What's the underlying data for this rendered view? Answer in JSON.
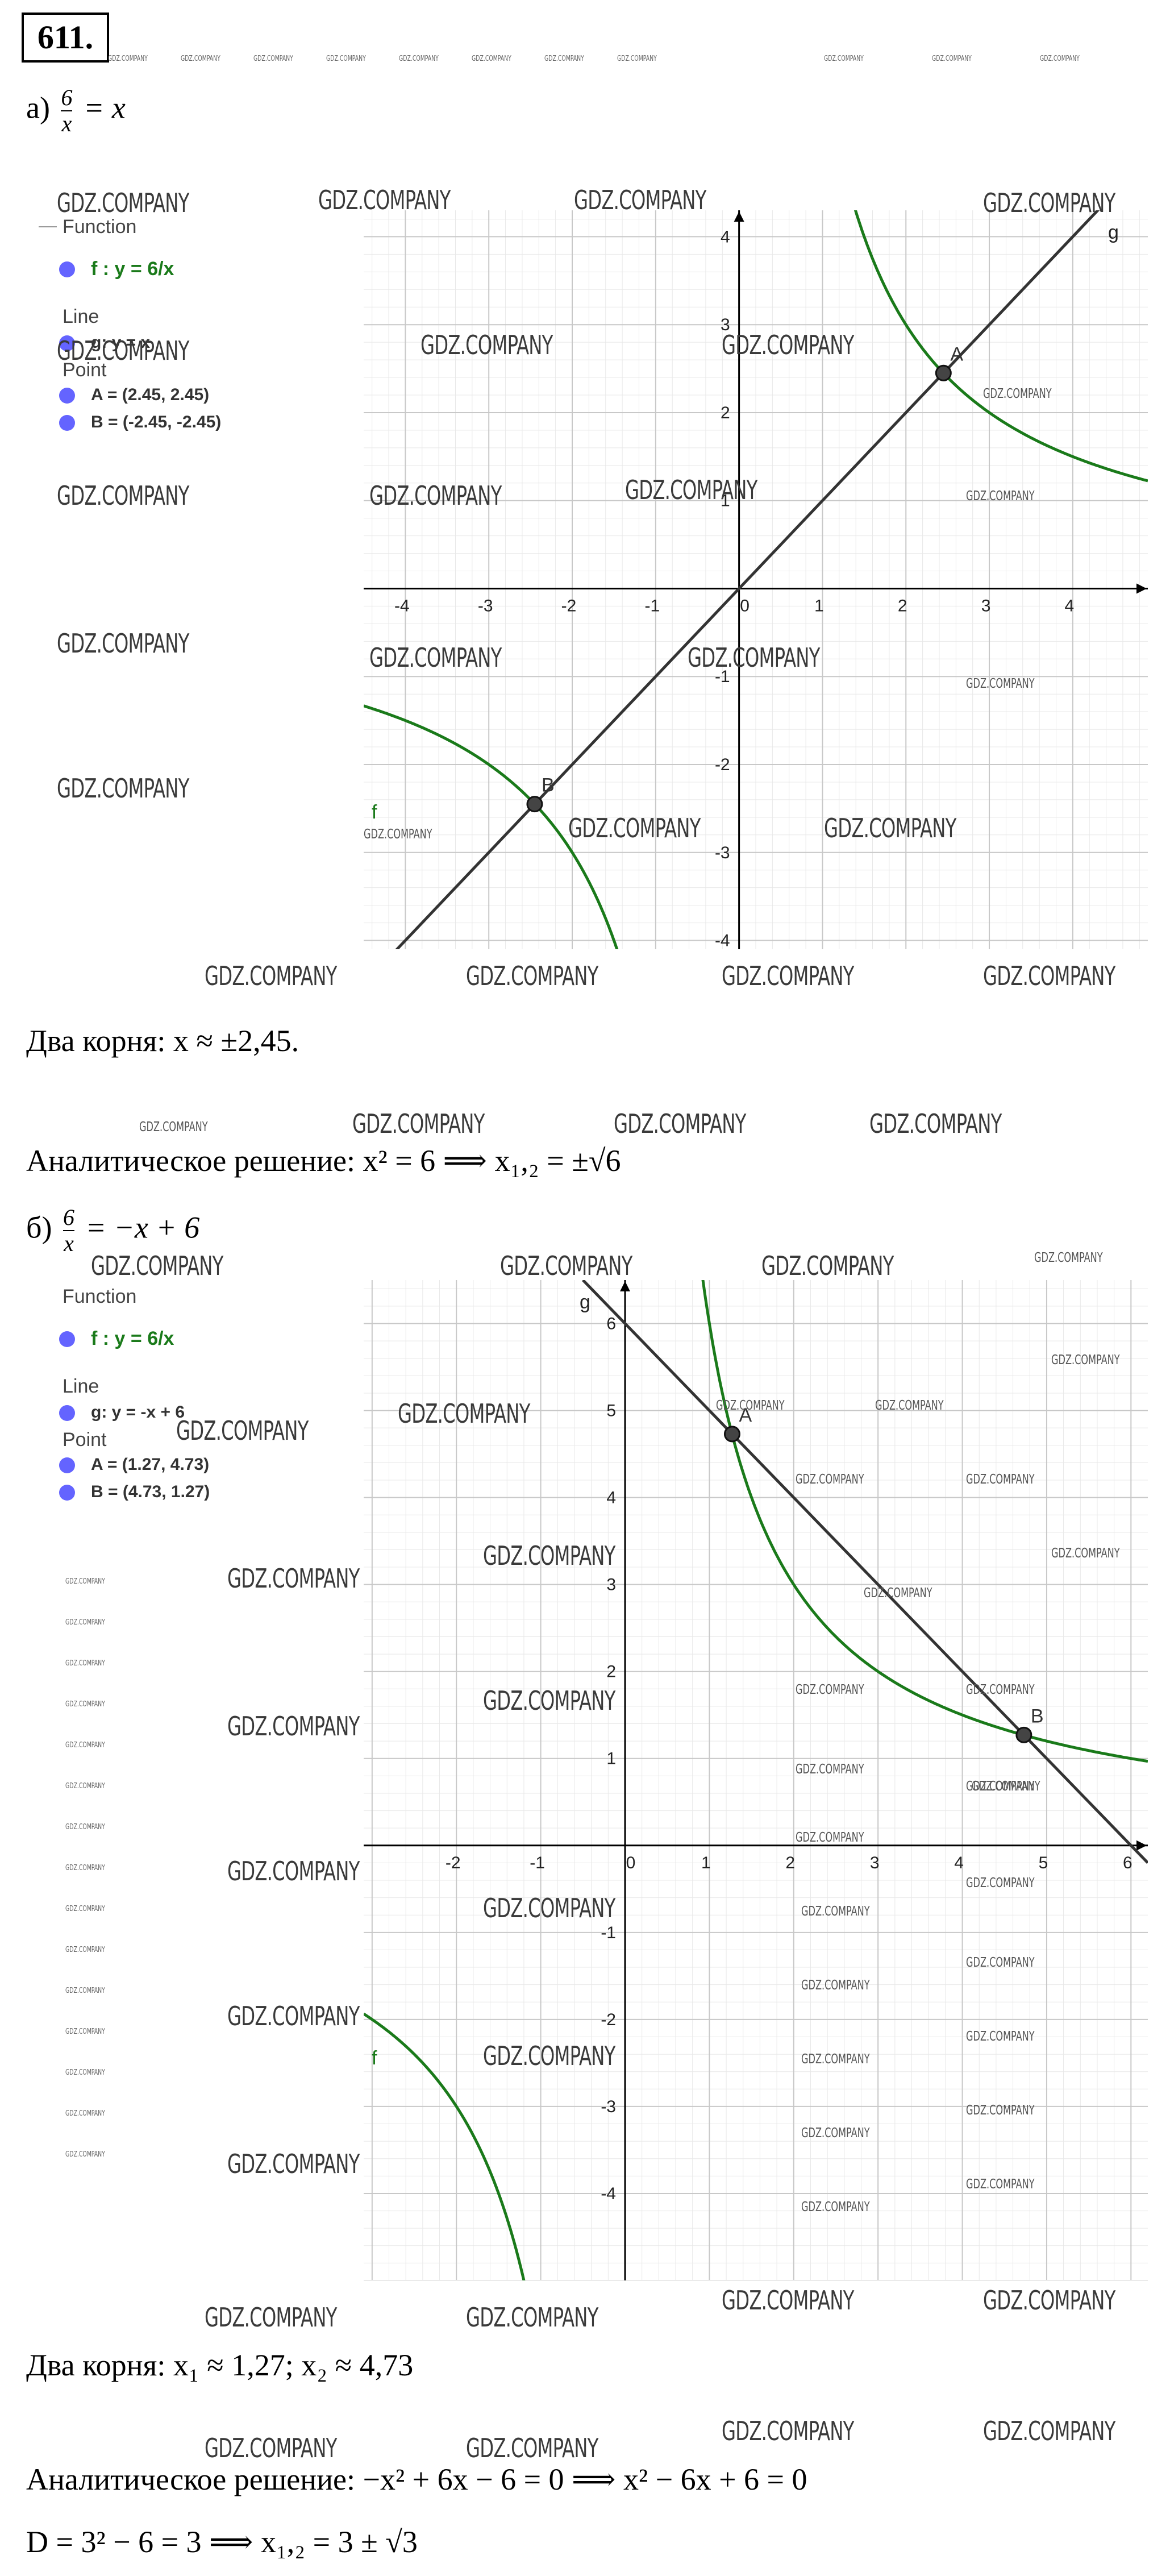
{
  "problem_number": "611.",
  "part_a": {
    "label": "а)",
    "equation": "6/x = x",
    "algebra": {
      "function_group": "Function",
      "function_item": "f : y = 6/x",
      "line_group": "Line",
      "line_item": "g: y = x",
      "point_group": "Point",
      "point_a": "A = (2.45, 2.45)",
      "point_b": "B = (-2.45, -2.45)"
    },
    "answer": "Два корня: x ≈ ±2,45.",
    "analytic": "Аналитическое решение: x² = 6  ⟹ x₁,₂ = ±√6"
  },
  "part_b": {
    "label": "б)",
    "equation": "6/x = −x + 6",
    "algebra": {
      "function_group": "Function",
      "function_item": "f : y = 6/x",
      "line_group": "Line",
      "line_item": "g: y = -x + 6",
      "point_group": "Point",
      "point_a": "A = (1.27, 4.73)",
      "point_b": "B = (4.73, 1.27)"
    },
    "answer": "Два корня: x₁ ≈ 1,27; x₂ ≈ 4,73",
    "analytic": "Аналитическое решение: −x² + 6x − 6 = 0  ⟹ x² − 6x + 6 = 0",
    "discriminant": "D = 3² − 6 = 3  ⟹ x₁,₂ = 3 ± √3"
  },
  "watermark": "GDZ.COMPANY",
  "colors": {
    "curve": "#1a7a1a",
    "line": "#333333",
    "point": "#444444",
    "grid_major": "#c8c8c8",
    "grid_minor": "#e8e8e8",
    "algebra_dot": "#6464ff"
  },
  "chart_data": [
    {
      "type": "line",
      "series": [
        {
          "name": "f",
          "formula": "y = 6/x",
          "color": "#1a7a1a"
        },
        {
          "name": "g",
          "formula": "y = x",
          "color": "#333333"
        }
      ],
      "points": [
        {
          "name": "A",
          "x": 2.45,
          "y": 2.45
        },
        {
          "name": "B",
          "x": -2.45,
          "y": -2.45
        }
      ],
      "xlim": [
        -4.5,
        4.9
      ],
      "ylim": [
        -4.1,
        4.3
      ],
      "x_ticks": [
        -4,
        -3,
        -2,
        -1,
        0,
        1,
        2,
        3,
        4
      ],
      "y_ticks": [
        -4,
        -3,
        -2,
        -1,
        1,
        2,
        3,
        4
      ],
      "grid": true
    },
    {
      "type": "line",
      "series": [
        {
          "name": "f",
          "formula": "y = 6/x",
          "color": "#1a7a1a"
        },
        {
          "name": "g",
          "formula": "y = -x + 6",
          "color": "#333333"
        }
      ],
      "points": [
        {
          "name": "A",
          "x": 1.27,
          "y": 4.73
        },
        {
          "name": "B",
          "x": 4.73,
          "y": 1.27
        }
      ],
      "xlim": [
        -3.1,
        6.2
      ],
      "ylim": [
        -5,
        6.5
      ],
      "x_ticks": [
        -2,
        -1,
        0,
        1,
        2,
        3,
        4,
        5,
        6
      ],
      "y_ticks": [
        -4,
        -3,
        -2,
        -1,
        1,
        2,
        3,
        4,
        5,
        6
      ],
      "grid": true
    }
  ]
}
